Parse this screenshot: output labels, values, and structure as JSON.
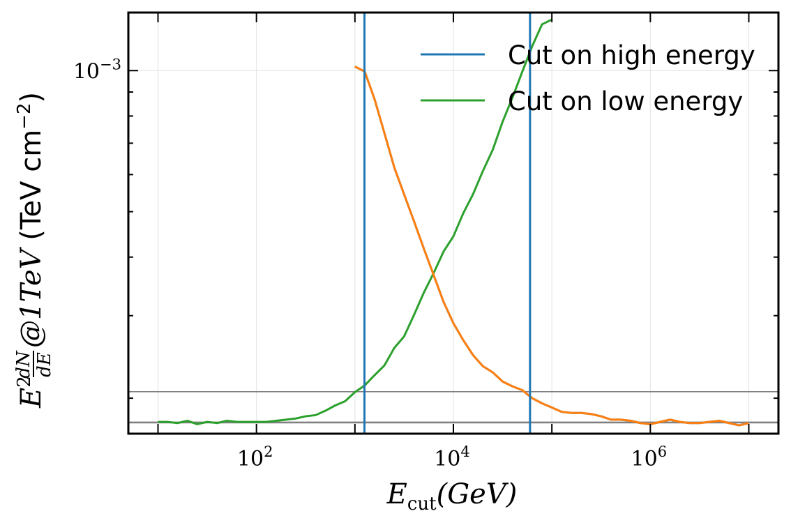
{
  "chart_data": {
    "type": "line",
    "xscale": "log",
    "yscale": "log",
    "xlim": [
      5,
      20000000
    ],
    "ylim": [
      0.000168,
      0.00133
    ],
    "grid": true,
    "legend_position": "top-right",
    "x_ticks": [
      {
        "value": 100,
        "base": "10",
        "exp": "2"
      },
      {
        "value": 10000,
        "base": "10",
        "exp": "4"
      },
      {
        "value": 1000000,
        "base": "10",
        "exp": "6"
      }
    ],
    "y_ticks": [
      {
        "value": 0.001,
        "base": "10",
        "exp": "−3"
      }
    ],
    "xlabel": {
      "main": "E",
      "sub": "cut",
      "tail": "(GeV)"
    },
    "ylabel": {
      "prefix": "E",
      "sup": "2",
      "frac_num": "dN",
      "frac_den": "dE",
      "tail": "@1TeV",
      "unit": " (TeV cm",
      "unit_exp": "−2",
      "unit_close": ")"
    },
    "series": [
      {
        "name": "Cut on high energy",
        "color": "#1f77b4",
        "x": [
          10,
          12.5,
          15.8,
          20,
          25,
          31.6,
          40,
          50,
          63,
          79,
          100,
          126,
          158,
          200,
          251,
          316,
          398,
          501,
          631,
          794,
          1000,
          1259,
          1585,
          1995,
          2512,
          3162,
          3981,
          5012,
          6310,
          7943,
          10000,
          12589,
          15849,
          19953,
          25119,
          31623,
          39811,
          50119,
          63096,
          79433,
          100000,
          125893,
          158489,
          199526,
          251189,
          316228,
          398107,
          501187,
          630957,
          794328,
          1000000,
          1258925,
          1584893,
          1995262,
          2511886,
          3162278,
          3981072,
          5011872,
          6309573,
          7943282,
          10000000
        ],
        "y": [
          null,
          null,
          null,
          null,
          null,
          null,
          null,
          null,
          null,
          null,
          null,
          null,
          null,
          null,
          null,
          null,
          null,
          null,
          null,
          null,
          0.00102,
          0.000995,
          0.000868,
          0.000735,
          0.000621,
          0.000544,
          0.000477,
          0.000417,
          0.000366,
          0.000321,
          0.000289,
          0.000266,
          0.000247,
          0.000234,
          0.000227,
          0.000217,
          0.000212,
          0.000208,
          0.0002,
          0.000195,
          0.000191,
          0.000187,
          0.000186,
          0.000186,
          0.000185,
          0.000183,
          0.00018,
          0.00018,
          0.000179,
          0.000177,
          0.000176,
          0.000178,
          0.00018,
          0.000178,
          0.000177,
          0.000177,
          0.000178,
          0.000179,
          0.000177,
          0.000175,
          0.000177
        ]
      },
      {
        "name": "Cut on low energy",
        "color": "#2ca02c",
        "x": [
          10,
          12.5,
          15.8,
          20,
          25,
          31.6,
          40,
          50,
          63,
          79,
          100,
          126,
          158,
          200,
          251,
          316,
          398,
          501,
          631,
          794,
          1000,
          1259,
          1585,
          1995,
          2512,
          3162,
          3981,
          5012,
          6310,
          7943,
          10000,
          12589,
          15849,
          19953,
          25119,
          31623,
          39811,
          50119,
          63096,
          79433,
          100000
        ],
        "y": [
          0.000178,
          0.000178,
          0.000177,
          0.000179,
          0.000176,
          0.000178,
          0.000177,
          0.000179,
          0.000178,
          0.000178,
          0.000178,
          0.000178,
          0.000179,
          0.00018,
          0.000181,
          0.000183,
          0.000184,
          0.000188,
          0.000193,
          0.000197,
          0.000206,
          0.000213,
          0.000224,
          0.000235,
          0.000256,
          0.000271,
          0.000301,
          0.000336,
          0.00037,
          0.000411,
          0.000443,
          0.000496,
          0.000545,
          0.000611,
          0.000678,
          0.000778,
          0.000876,
          0.000995,
          0.001127,
          0.001255,
          0.001285
        ]
      },
      {
        "color": "#ff7f0e",
        "x": [
          1000,
          1259,
          1585,
          1995,
          2512,
          3162,
          3981,
          5012,
          6310,
          7943,
          10000,
          12589,
          15849,
          19953,
          25119,
          31623,
          39811,
          50119,
          63096,
          79433,
          100000,
          125893,
          158489,
          199526,
          251189,
          316228,
          398107,
          501187,
          630957,
          794328,
          1000000,
          1258925,
          1584893,
          1995262,
          2511886,
          3162278,
          3981072,
          5011872,
          6309573,
          7943282,
          10000000
        ],
        "y": [
          0.00102,
          0.000995,
          0.000868,
          0.000735,
          0.000621,
          0.000544,
          0.000477,
          0.000417,
          0.000366,
          0.000321,
          0.000289,
          0.000266,
          0.000247,
          0.000234,
          0.000227,
          0.000217,
          0.000212,
          0.000208,
          0.0002,
          0.000195,
          0.000191,
          0.000187,
          0.000186,
          0.000186,
          0.000185,
          0.000183,
          0.00018,
          0.00018,
          0.000179,
          0.000177,
          0.000176,
          0.000178,
          0.00018,
          0.000178,
          0.000177,
          0.000177,
          0.000178,
          0.000179,
          0.000177,
          0.000175,
          0.000177
        ]
      }
    ],
    "vlines": [
      {
        "x": 1250,
        "color": "#1f77b4"
      },
      {
        "x": 60000,
        "color": "#1f77b4"
      }
    ],
    "hlines": [
      {
        "y": 0.0001775,
        "color": "#808080"
      },
      {
        "y": 0.0002065,
        "color": "#808080"
      }
    ]
  }
}
